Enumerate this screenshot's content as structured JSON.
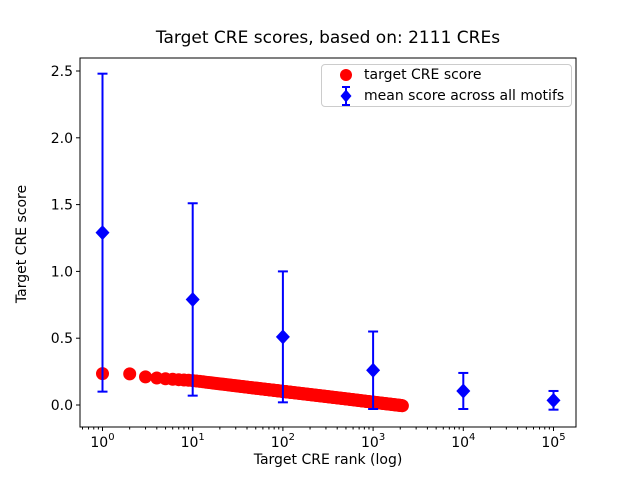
{
  "figure": {
    "background": "#ffffff"
  },
  "chart_data": {
    "type": "scatter",
    "title": "Target CRE scores, based on: 2111 CREs",
    "xlabel": "Target CRE rank (log)",
    "ylabel": "Target CRE score",
    "x_scale": "log",
    "grid": false,
    "x_axis": {
      "tick_values": [
        1,
        10,
        100,
        1000,
        10000,
        100000
      ],
      "tick_label_base": "10",
      "tick_label_exponents": [
        "0",
        "1",
        "2",
        "3",
        "4",
        "5"
      ],
      "minor_subs": [
        2,
        3,
        4,
        5,
        6,
        7,
        8,
        9
      ],
      "range_log10": [
        -0.25,
        5.25
      ]
    },
    "y_axis": {
      "tick_values": [
        0.0,
        0.5,
        1.0,
        1.5,
        2.0,
        2.5
      ],
      "tick_labels": [
        "0.0",
        "0.5",
        "1.0",
        "1.5",
        "2.0",
        "2.5"
      ],
      "range": [
        -0.165,
        2.6
      ]
    },
    "legend": {
      "position": "upper right",
      "items": [
        {
          "label": "target CRE score",
          "marker": "circle",
          "color": "#ff0000"
        },
        {
          "label": "mean score across all motifs",
          "marker": "diamond-errorbar",
          "color": "#0000ff"
        }
      ]
    },
    "series": [
      {
        "name": "target CRE score",
        "type": "scatter",
        "marker": "circle",
        "color": "#ff0000",
        "n_points": 2111,
        "anchor_ranks": [
          1,
          2,
          3,
          4,
          5,
          6,
          8,
          10,
          20,
          50,
          100,
          200,
          500,
          1000,
          1500,
          2111
        ],
        "anchor_scores": [
          0.235,
          0.233,
          0.21,
          0.202,
          0.196,
          0.192,
          0.187,
          0.183,
          0.158,
          0.126,
          0.102,
          0.078,
          0.046,
          0.021,
          0.007,
          -0.005
        ]
      },
      {
        "name": "mean score across all motifs",
        "type": "errorbar",
        "marker": "diamond",
        "color": "#0000ff",
        "x": [
          1,
          10,
          100,
          1000,
          10000,
          100000
        ],
        "y": [
          1.29,
          0.79,
          0.51,
          0.26,
          0.105,
          0.035
        ],
        "yerr": [
          1.19,
          0.72,
          0.49,
          0.29,
          0.135,
          0.07
        ]
      }
    ]
  }
}
